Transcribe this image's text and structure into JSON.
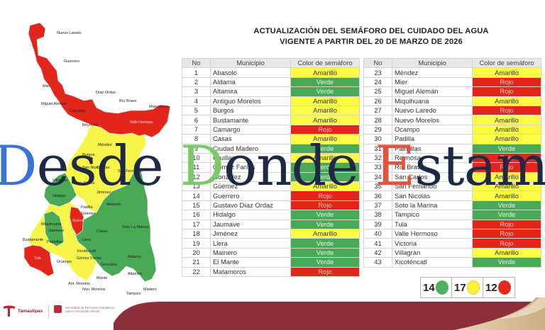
{
  "title": {
    "line1": "ACTUALIZACIÓN DEL SEMÁFORO DEL CUIDADO DEL AGUA",
    "line2": "VIGENTE A PARTIR DEL 20 DE MARZO DE 2026"
  },
  "colors": {
    "amarillo": "#fcfc46",
    "verde": "#4aa957",
    "rojo": "#e3261c",
    "brand_maroon": "#8c2f3c",
    "brand_gold": "#d9c3a0"
  },
  "table": {
    "headers": {
      "no": "No",
      "municipio": "Municipio",
      "color": "Color de semáforo"
    },
    "left": [
      {
        "no": "1",
        "municipio": "Abasolo",
        "color": "Amarillo"
      },
      {
        "no": "2",
        "municipio": "Aldama",
        "color": "Verde"
      },
      {
        "no": "3",
        "municipio": "Altamira",
        "color": "Verde"
      },
      {
        "no": "4",
        "municipio": "Antiguo Morelos",
        "color": "Amarillo"
      },
      {
        "no": "5",
        "municipio": "Burgos",
        "color": "Amarillo"
      },
      {
        "no": "6",
        "municipio": "Bustamante",
        "color": "Amarillo"
      },
      {
        "no": "7",
        "municipio": "Camargo",
        "color": "Rojo"
      },
      {
        "no": "8",
        "municipio": "Casas",
        "color": "Amarillo"
      },
      {
        "no": "9",
        "municipio": "Ciudad Madero",
        "color": "Verde"
      },
      {
        "no": "10",
        "municipio": "Cruillas",
        "color": "Amarillo"
      },
      {
        "no": "11",
        "municipio": "Gómez Farías",
        "color": "Verde"
      },
      {
        "no": "12",
        "municipio": "González",
        "color": "Verde"
      },
      {
        "no": "13",
        "municipio": "Güémez",
        "color": "Amarillo"
      },
      {
        "no": "14",
        "municipio": "Guerrero",
        "color": "Rojo"
      },
      {
        "no": "15",
        "municipio": "Gustavo Díaz Ordaz",
        "color": "Rojo"
      },
      {
        "no": "16",
        "municipio": "Hidalgo",
        "color": "Verde"
      },
      {
        "no": "17",
        "municipio": "Jaumave",
        "color": "Verde"
      },
      {
        "no": "18",
        "municipio": "Jiménez",
        "color": "Amarillo"
      },
      {
        "no": "19",
        "municipio": "Llera",
        "color": "Verde"
      },
      {
        "no": "20",
        "municipio": "Mainero",
        "color": "Verde"
      },
      {
        "no": "21",
        "municipio": "El Mante",
        "color": "Verde"
      },
      {
        "no": "22",
        "municipio": "Matamoros",
        "color": "Rojo"
      }
    ],
    "right": [
      {
        "no": "23",
        "municipio": "Méndez",
        "color": "Amarillo"
      },
      {
        "no": "24",
        "municipio": "Mier",
        "color": "Rojo"
      },
      {
        "no": "25",
        "municipio": "Miguel Alemán",
        "color": "Rojo"
      },
      {
        "no": "26",
        "municipio": "Miquihuana",
        "color": "Amarillo"
      },
      {
        "no": "27",
        "municipio": "Nuevo Laredo",
        "color": "Rojo"
      },
      {
        "no": "28",
        "municipio": "Nuevo Morelos",
        "color": "Amarillo"
      },
      {
        "no": "29",
        "municipio": "Ocampo",
        "color": "Amarillo"
      },
      {
        "no": "30",
        "municipio": "Padilla",
        "color": "Amarillo"
      },
      {
        "no": "31",
        "municipio": "Palmillas",
        "color": "Verde"
      },
      {
        "no": "32",
        "municipio": "Reynosa",
        "color": "Rojo"
      },
      {
        "no": "33",
        "municipio": "Río Bravo",
        "color": "Rojo"
      },
      {
        "no": "34",
        "municipio": "San Carlos",
        "color": "Amarillo"
      },
      {
        "no": "35",
        "municipio": "San Fernando",
        "color": "Amarillo"
      },
      {
        "no": "36",
        "municipio": "San Nicolás",
        "color": "Amarillo"
      },
      {
        "no": "37",
        "municipio": "Soto la Marina",
        "color": "Verde"
      },
      {
        "no": "38",
        "municipio": "Tampico",
        "color": "Verde"
      },
      {
        "no": "39",
        "municipio": "Tula",
        "color": "Rojo"
      },
      {
        "no": "40",
        "municipio": "Valle Hermoso",
        "color": "Rojo"
      },
      {
        "no": "41",
        "municipio": "Victoria",
        "color": "Rojo"
      },
      {
        "no": "42",
        "municipio": "Villagrán",
        "color": "Amarillo"
      },
      {
        "no": "43",
        "municipio": "Xicoténcatl",
        "color": "Verde"
      }
    ]
  },
  "legend": [
    {
      "count": "14",
      "color": "verde"
    },
    {
      "count": "17",
      "color": "amarillo"
    },
    {
      "count": "12",
      "color": "rojo"
    }
  ],
  "map": {
    "labels": {
      "nuevo_laredo": "Nuevo Laredo",
      "guerrero": "Guerrero",
      "mier": "Mier",
      "diaz_ordaz": "Díaz Ordaz",
      "miguel_aleman": "Miguel Alemán",
      "rio_bravo": "Río Bravo",
      "matamoros": "Matamoros",
      "camargo": "Camargo",
      "reynosa": "Reynosa",
      "valle_hermoso": "Valle Hermoso",
      "mendez": "Méndez",
      "burgos": "Burgos",
      "san_nicolas": "San Nicolás",
      "cruillas": "Cruillas",
      "san_fernando": "San Fernando",
      "villagran": "Villagrán",
      "san_carlos": "San Carlos",
      "jimenez": "Jiménez",
      "hidalgo": "Hidalgo",
      "padilla": "Padilla",
      "abasolo": "Abasolo",
      "guemez": "Güémez",
      "victoria": "Victoria",
      "miquihuana": "Miquihuana",
      "jaumave": "Jaumave",
      "casas": "Casas",
      "soto_la_marina": "Soto La Marina",
      "bustamante": "Bustamante",
      "palmillas": "Palmillas",
      "llera": "Llera",
      "tula": "Tula",
      "xicotencatl": "Xicoténcatl",
      "ocampo": "Ocampo",
      "gomez_farias": "Gómez Farías",
      "gonzalez": "González",
      "aldama": "Aldama",
      "altamira": "Altamira",
      "mante": "Mante",
      "ant_morelos": "Ant. Morelos",
      "nvo_morelos": "Nvo. Morelos",
      "tampico": "Tampico",
      "madero": "Madero"
    }
  },
  "footer": {
    "logo1_name": "Tamaulipas",
    "logo2_text": "Secretaría de Recursos Hidráulicos para el Desarrollo Social"
  },
  "watermark": {
    "p1": "D",
    "p2": "esde ",
    "p3": "D",
    "p4": "onde ",
    "p5": "E",
    "p6": "stamos"
  }
}
